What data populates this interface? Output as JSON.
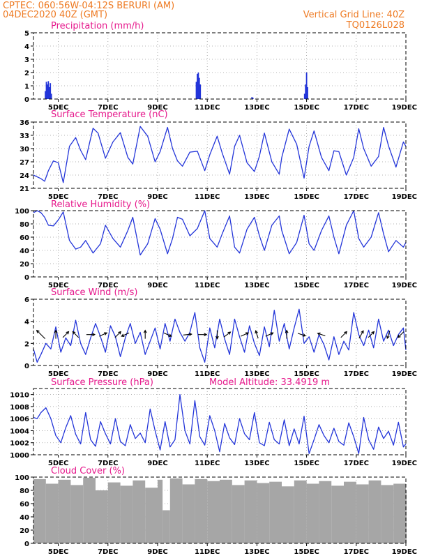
{
  "header": {
    "left_line1": "CPTEC:   060:56W-04:12S   BERURI (AM)",
    "left_line2": "04DEC2020 40Z (GMT)",
    "right_line1": "Vertical Grid Line: 40Z",
    "right_line2": "TQ0126L028"
  },
  "colors": {
    "header": "#ee7a22",
    "panel_title": "#e6198c",
    "series": "#2335d9",
    "cloud": "#a6a6a6"
  },
  "chart_data": [
    {
      "id": "precip",
      "type": "bar",
      "title": "Precipitation (mm/h)",
      "xaxis": {
        "range": [
          4,
          19
        ],
        "ticks": [
          5,
          7,
          9,
          11,
          13,
          15,
          17,
          19
        ],
        "tick_labels": [
          "5DEC",
          "7DEC",
          "9DEC",
          "11DEC",
          "13DEC",
          "15DEC",
          "17DEC",
          "19DEC"
        ]
      },
      "ylim": [
        0,
        5
      ],
      "yticks": [
        0,
        1,
        2,
        3,
        4,
        5
      ],
      "x": [
        4.48,
        4.52,
        4.56,
        4.6,
        4.64,
        4.68,
        4.72,
        10.56,
        10.6,
        10.64,
        10.68,
        10.72,
        12.8,
        12.84,
        14.92,
        14.96,
        15.0,
        15.04
      ],
      "values": [
        0.6,
        1.3,
        1.1,
        1.35,
        0.9,
        1.2,
        0.4,
        1.3,
        1.9,
        2.0,
        1.6,
        1.1,
        0.15,
        0.1,
        0.4,
        1.1,
        2.0,
        0.9
      ]
    },
    {
      "id": "temp",
      "type": "line",
      "title": "Surface Temperature (nC)",
      "xaxis": {
        "range": [
          4,
          19
        ],
        "ticks": [
          5,
          7,
          9,
          11,
          13,
          15,
          17,
          19
        ],
        "tick_labels": [
          "5DEC",
          "7DEC",
          "9DEC",
          "11DEC",
          "13DEC",
          "15DEC",
          "17DEC",
          "19DEC"
        ]
      },
      "ylim": [
        21,
        36
      ],
      "yticks": [
        21,
        24,
        27,
        30,
        33,
        36
      ],
      "x": [
        4,
        4.3,
        4.45,
        4.6,
        4.8,
        5.0,
        5.2,
        5.45,
        5.7,
        5.9,
        6.1,
        6.4,
        6.6,
        6.9,
        7.2,
        7.5,
        7.8,
        8.0,
        8.3,
        8.6,
        8.9,
        9.1,
        9.4,
        9.6,
        9.8,
        10.0,
        10.3,
        10.6,
        10.9,
        11.1,
        11.4,
        11.6,
        11.9,
        12.1,
        12.3,
        12.6,
        12.9,
        13.1,
        13.3,
        13.6,
        13.9,
        14.0,
        14.3,
        14.6,
        14.9,
        15.1,
        15.3,
        15.6,
        15.9,
        16.1,
        16.3,
        16.6,
        16.9,
        17.1,
        17.3,
        17.6,
        17.9,
        18.1,
        18.3,
        18.6,
        18.9,
        19.0
      ],
      "values": [
        24.0,
        23.2,
        22.6,
        25.0,
        27.2,
        26.8,
        22.3,
        30.5,
        32.5,
        29.6,
        27.5,
        34.6,
        33.5,
        27.8,
        31.5,
        33.6,
        28.0,
        26.5,
        35.0,
        32.8,
        27.0,
        29.3,
        34.8,
        30.0,
        27.2,
        26.0,
        29.2,
        29.4,
        25.0,
        28.6,
        32.8,
        29.0,
        24.2,
        30.5,
        33.0,
        26.8,
        24.8,
        28.3,
        33.5,
        27.0,
        24.2,
        28.0,
        34.4,
        31.0,
        23.3,
        30.5,
        34.0,
        28.0,
        25.0,
        29.5,
        29.3,
        24.0,
        28.0,
        34.5,
        30.0,
        26.0,
        28.2,
        34.8,
        30.6,
        25.8,
        31.5,
        30.5
      ]
    },
    {
      "id": "rh",
      "type": "line",
      "title": "Relative Humidity (%)",
      "xaxis": {
        "range": [
          4,
          19
        ],
        "ticks": [
          5,
          7,
          9,
          11,
          13,
          15,
          17,
          19
        ],
        "tick_labels": [
          "5DEC",
          "7DEC",
          "9DEC",
          "11DEC",
          "13DEC",
          "15DEC",
          "17DEC",
          "19DEC"
        ]
      },
      "ylim": [
        0,
        100
      ],
      "yticks": [
        0,
        20,
        40,
        60,
        80,
        100
      ],
      "x": [
        4,
        4.15,
        4.3,
        4.45,
        4.6,
        4.8,
        5.0,
        5.2,
        5.45,
        5.7,
        5.9,
        6.1,
        6.4,
        6.7,
        6.9,
        7.2,
        7.5,
        7.8,
        8.0,
        8.3,
        8.6,
        8.9,
        9.1,
        9.4,
        9.6,
        9.8,
        10.0,
        10.3,
        10.6,
        10.9,
        11.1,
        11.4,
        11.6,
        11.9,
        12.1,
        12.3,
        12.6,
        12.9,
        13.1,
        13.3,
        13.6,
        13.9,
        14.0,
        14.3,
        14.6,
        14.9,
        15.1,
        15.3,
        15.6,
        15.9,
        16.1,
        16.3,
        16.6,
        16.9,
        17.1,
        17.3,
        17.6,
        17.9,
        18.1,
        18.3,
        18.6,
        18.9,
        19.0
      ],
      "values": [
        97,
        100,
        97,
        90,
        78,
        77,
        86,
        98,
        55,
        42,
        45,
        55,
        36,
        50,
        78,
        58,
        45,
        70,
        90,
        33,
        50,
        88,
        72,
        35,
        58,
        90,
        87,
        62,
        73,
        100,
        58,
        45,
        65,
        92,
        45,
        36,
        72,
        90,
        62,
        40,
        78,
        92,
        70,
        35,
        52,
        93,
        50,
        40,
        70,
        92,
        60,
        35,
        78,
        100,
        58,
        45,
        60,
        97,
        65,
        38,
        55,
        45,
        52
      ]
    },
    {
      "id": "wind",
      "type": "line",
      "title": "Surface Wind (m/s)",
      "xaxis": {
        "range": [
          4,
          19
        ],
        "ticks": [
          5,
          7,
          9,
          11,
          13,
          15,
          17,
          19
        ],
        "tick_labels": [
          "5DEC",
          "7DEC",
          "9DEC",
          "11DEC",
          "13DEC",
          "15DEC",
          "17DEC",
          "19DEC"
        ]
      },
      "ylim": [
        0,
        6
      ],
      "yticks": [
        0,
        2,
        4,
        6
      ],
      "x": [
        4,
        4.15,
        4.3,
        4.5,
        4.7,
        4.9,
        5.1,
        5.3,
        5.5,
        5.7,
        5.9,
        6.1,
        6.3,
        6.5,
        6.7,
        6.9,
        7.1,
        7.3,
        7.5,
        7.7,
        7.9,
        8.1,
        8.3,
        8.5,
        8.7,
        8.9,
        9.1,
        9.3,
        9.5,
        9.7,
        9.9,
        10.1,
        10.3,
        10.5,
        10.7,
        10.9,
        11.1,
        11.3,
        11.5,
        11.7,
        11.9,
        12.1,
        12.3,
        12.5,
        12.7,
        12.9,
        13.1,
        13.3,
        13.5,
        13.7,
        13.9,
        14.1,
        14.3,
        14.5,
        14.7,
        14.9,
        15.1,
        15.3,
        15.5,
        15.7,
        15.9,
        16.1,
        16.3,
        16.5,
        16.7,
        16.9,
        17.1,
        17.3,
        17.5,
        17.7,
        17.9,
        18.1,
        18.3,
        18.5,
        18.7,
        18.9,
        19.0
      ],
      "values": [
        1.5,
        0.3,
        1.0,
        2.0,
        1.5,
        3.5,
        1.2,
        2.5,
        1.8,
        4.1,
        2.0,
        1.0,
        2.5,
        3.8,
        2.6,
        1.2,
        3.6,
        2.6,
        0.8,
        2.5,
        3.8,
        2.0,
        3.0,
        1.0,
        2.2,
        3.4,
        1.5,
        3.8,
        2.2,
        4.2,
        3.0,
        2.2,
        3.0,
        4.8,
        1.6,
        0.3,
        3.4,
        1.6,
        4.2,
        2.4,
        1.0,
        4.2,
        2.6,
        1.2,
        3.6,
        2.0,
        0.9,
        3.5,
        1.7,
        5.0,
        2.2,
        3.8,
        1.5,
        3.4,
        5.1,
        2.0,
        2.6,
        1.2,
        2.8,
        1.9,
        0.5,
        2.6,
        1.0,
        2.2,
        1.4,
        4.8,
        2.8,
        1.8,
        3.2,
        1.6,
        4.2,
        2.2,
        3.2,
        1.8,
        2.8,
        3.4,
        1.4
      ]
    },
    {
      "id": "pressure",
      "type": "line",
      "title": "Surface Pressure (hPa)",
      "annotation": "Model Altitude: 33.4919 m",
      "xaxis": {
        "range": [
          4,
          19
        ],
        "ticks": [
          5,
          7,
          9,
          11,
          13,
          15,
          17,
          19
        ],
        "tick_labels": [
          "5DEC",
          "7DEC",
          "9DEC",
          "11DEC",
          "13DEC",
          "15DEC",
          "17DEC",
          "19DEC"
        ]
      },
      "ylim": [
        1000,
        1011
      ],
      "yticks": [
        1000,
        1002,
        1004,
        1006,
        1008,
        1010
      ],
      "x": [
        4,
        4.15,
        4.3,
        4.5,
        4.7,
        4.9,
        5.1,
        5.3,
        5.5,
        5.7,
        5.9,
        6.1,
        6.3,
        6.5,
        6.7,
        6.9,
        7.1,
        7.3,
        7.5,
        7.7,
        7.9,
        8.1,
        8.3,
        8.5,
        8.7,
        8.9,
        9.1,
        9.3,
        9.5,
        9.7,
        9.9,
        10.1,
        10.3,
        10.5,
        10.7,
        10.9,
        11.1,
        11.3,
        11.5,
        11.7,
        11.9,
        12.1,
        12.3,
        12.5,
        12.7,
        12.9,
        13.1,
        13.3,
        13.5,
        13.7,
        13.9,
        14.1,
        14.3,
        14.5,
        14.7,
        14.9,
        15.1,
        15.3,
        15.5,
        15.7,
        15.9,
        16.1,
        16.3,
        16.5,
        16.7,
        16.9,
        17.1,
        17.3,
        17.5,
        17.7,
        17.9,
        18.1,
        18.3,
        18.5,
        18.7,
        18.9,
        19.0
      ],
      "values": [
        1006.2,
        1006.0,
        1007.0,
        1007.8,
        1006.0,
        1003.2,
        1002.0,
        1004.5,
        1006.5,
        1003.4,
        1001.8,
        1007.0,
        1002.5,
        1001.4,
        1005.5,
        1003.5,
        1001.8,
        1006.0,
        1002.2,
        1001.5,
        1005.0,
        1002.7,
        1003.6,
        1002.0,
        1007.6,
        1004.0,
        1000.8,
        1005.5,
        1001.3,
        1002.5,
        1010.0,
        1004.0,
        1001.8,
        1009.0,
        1003.0,
        1001.6,
        1006.5,
        1004.0,
        1000.5,
        1005.2,
        1002.8,
        1001.7,
        1006.0,
        1003.5,
        1002.5,
        1007.0,
        1002.0,
        1001.5,
        1005.4,
        1002.5,
        1001.8,
        1005.8,
        1001.5,
        1004.3,
        1001.8,
        1006.4,
        1000.2,
        1002.5,
        1005.0,
        1003.2,
        1002.0,
        1004.4,
        1002.2,
        1001.6,
        1005.3,
        1003.0,
        1000.2,
        1006.2,
        1002.5,
        1000.9,
        1004.6,
        1002.7,
        1003.9,
        1001.6,
        1005.4,
        1001.3,
        1001.8
      ]
    },
    {
      "id": "cloud",
      "type": "bar",
      "title": "Cloud Cover (%)",
      "xaxis": {
        "range": [
          4,
          19
        ],
        "ticks": [
          5,
          7,
          9,
          11,
          13,
          15,
          17,
          19
        ],
        "tick_labels": [
          "5DEC",
          "7DEC",
          "9DEC",
          "11DEC",
          "13DEC",
          "15DEC",
          "17DEC",
          "19DEC"
        ]
      },
      "ylim": [
        0,
        100
      ],
      "yticks": [
        0,
        20,
        40,
        60,
        80,
        100
      ],
      "x": [
        4,
        4.5,
        5,
        5.5,
        6,
        6.5,
        7,
        7.5,
        8,
        8.5,
        9,
        9.2,
        9.5,
        10,
        10.5,
        11,
        11.5,
        12,
        12.5,
        13,
        13.5,
        14,
        14.5,
        15,
        15.5,
        16,
        16.5,
        17,
        17.5,
        18,
        18.5,
        19
      ],
      "values": [
        97,
        90,
        96,
        88,
        99,
        80,
        92,
        87,
        95,
        84,
        96,
        50,
        98,
        89,
        97,
        94,
        96,
        88,
        95,
        91,
        93,
        86,
        95,
        90,
        94,
        87,
        93,
        89,
        95,
        88,
        90,
        80
      ]
    }
  ],
  "wind_arrows": [
    {
      "x": 4.3,
      "u": -1,
      "v": 1
    },
    {
      "x": 4.9,
      "u": 0,
      "v": 1
    },
    {
      "x": 5.3,
      "u": 0.7,
      "v": 0.7
    },
    {
      "x": 5.7,
      "u": -0.7,
      "v": 0.7
    },
    {
      "x": 6.3,
      "u": 1,
      "v": 0
    },
    {
      "x": 6.8,
      "u": 0.9,
      "v": 0.4
    },
    {
      "x": 7.4,
      "u": 0.7,
      "v": 0.7
    },
    {
      "x": 7.7,
      "u": -0.9,
      "v": -0.4
    },
    {
      "x": 8.5,
      "u": 0,
      "v": 1
    },
    {
      "x": 9.4,
      "u": 0.9,
      "v": -0.4
    },
    {
      "x": 10.2,
      "u": 1,
      "v": 0.1
    },
    {
      "x": 10.8,
      "u": 1,
      "v": 0
    },
    {
      "x": 11.4,
      "u": 0,
      "v": -1
    },
    {
      "x": 11.8,
      "u": 0.8,
      "v": 0.6
    },
    {
      "x": 12.5,
      "u": 0.9,
      "v": 0.4
    },
    {
      "x": 13.0,
      "u": -0.3,
      "v": 0.9
    },
    {
      "x": 13.5,
      "u": 0.9,
      "v": 0.4
    },
    {
      "x": 14.2,
      "u": 0,
      "v": 1
    },
    {
      "x": 14.8,
      "u": 0.9,
      "v": -0.3
    },
    {
      "x": 15.6,
      "u": -0.9,
      "v": 0.3
    },
    {
      "x": 16.5,
      "u": 0.7,
      "v": 0.7
    },
    {
      "x": 17.2,
      "u": 0.5,
      "v": 0.9
    },
    {
      "x": 17.6,
      "u": 0.7,
      "v": 0.7
    },
    {
      "x": 18.3,
      "u": -0.3,
      "v": -0.9
    },
    {
      "x": 18.8,
      "u": -0.7,
      "v": -0.7
    }
  ]
}
